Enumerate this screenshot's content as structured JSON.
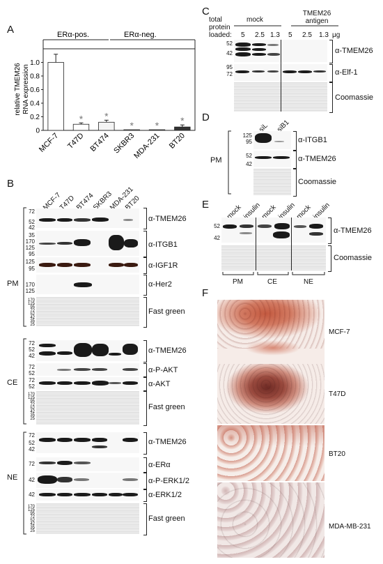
{
  "panels": {
    "A": "A",
    "B": "B",
    "C": "C",
    "D": "D",
    "E": "E",
    "F": "F"
  },
  "panel_a": {
    "group_pos": "ERα-pos.",
    "group_neg": "ERα-neg.",
    "ylabel_line1": "relative TMEM26",
    "ylabel_line2": "RNA expression",
    "ticks": [
      "1.0",
      "0.8",
      "0.6",
      "0.4",
      "0.2",
      "0"
    ],
    "star": "*"
  },
  "chart_data": {
    "type": "bar",
    "categories": [
      "MCF-7",
      "T47D",
      "BT474",
      "SKBR3",
      "MDA-231",
      "BT20"
    ],
    "values": [
      1.0,
      0.09,
      0.12,
      0.01,
      0.01,
      0.05
    ],
    "errors": [
      0.12,
      0.02,
      0.03,
      0.0,
      0.0,
      0.03
    ],
    "fills": [
      "#ffffff",
      "#ffffff",
      "#f4f4f4",
      "#d0d0d0",
      "#a0a0a0",
      "#333333"
    ],
    "ylabel": "relative TMEM26 RNA expression",
    "ylim": [
      0,
      1.2
    ],
    "significant": [
      false,
      true,
      true,
      true,
      true,
      true
    ]
  },
  "panel_b": {
    "lanes": [
      "MCF-7",
      "T47D",
      "BT474",
      "SKBR3",
      "MDA-231",
      "BT20"
    ],
    "pm_label": "PM",
    "ce_label": "CE",
    "ne_label": "NE",
    "pm_rows": [
      "α-TMEM26",
      "α-ITGB1",
      "α-IGF1R",
      "α-Her2",
      "Fast green"
    ],
    "ce_rows": [
      "α-TMEM26",
      "α-P-AKT",
      "α-AKT",
      "Fast green"
    ],
    "ne_rows": [
      "α-TMEM26",
      "α-ERα",
      "α-P-ERK1/2",
      "α-ERK1/2",
      "Fast green"
    ],
    "markers_pm1": [
      "72",
      "52",
      "42"
    ],
    "markers_pm2": [
      "35",
      "170",
      "125",
      "95"
    ],
    "markers_pm3": [
      "125",
      "95"
    ],
    "markers_pm4": [
      "170",
      "125"
    ],
    "markers_ce1": [
      "72",
      "52",
      "42"
    ],
    "markers_ce2": [
      "72",
      "52"
    ],
    "markers_ce3": [
      "72",
      "52"
    ],
    "markers_ne1": [
      "72",
      "52",
      "42"
    ],
    "markers_ne2": [
      "72"
    ],
    "markers_ne3": [
      "42"
    ],
    "markers_ne4": [
      "42"
    ],
    "fastgreen_markers": [
      "170",
      "125",
      "95",
      "72",
      "52",
      "42",
      "35",
      "25"
    ]
  },
  "panel_c": {
    "title_line1": "total",
    "title_line2": "protein",
    "title_line3": "loaded:",
    "group_mock": "mock",
    "group_antigen_line1": "TMEM26",
    "group_antigen_line2": "antigen",
    "amounts": [
      "5",
      "2.5",
      "1.3",
      "5",
      "2.5",
      "1.3"
    ],
    "unit": "μg",
    "rows": [
      "α-TMEM26",
      "α-Elf-1",
      "Coomassie"
    ],
    "markers_top": [
      "52",
      "42"
    ],
    "markers_mid": [
      "95",
      "72"
    ]
  },
  "panel_d": {
    "lanes": [
      "siL",
      "siB1"
    ],
    "side_label": "PM",
    "rows": [
      "α-ITGB1",
      "α-TMEM26",
      "Coomassie"
    ],
    "markers_top": [
      "125",
      "95"
    ],
    "markers_mid": [
      "52",
      "42"
    ]
  },
  "panel_e": {
    "lanes": [
      "mock",
      "insulin",
      "mock",
      "insulin",
      "mock",
      "insulin"
    ],
    "fractions": [
      "PM",
      "CE",
      "NE"
    ],
    "rows": [
      "α-TMEM26",
      "Coomassie"
    ],
    "markers": [
      "52",
      "42"
    ]
  },
  "panel_f": {
    "cells": [
      "MCF-7",
      "T47D",
      "BT20",
      "MDA-MB-231"
    ]
  }
}
